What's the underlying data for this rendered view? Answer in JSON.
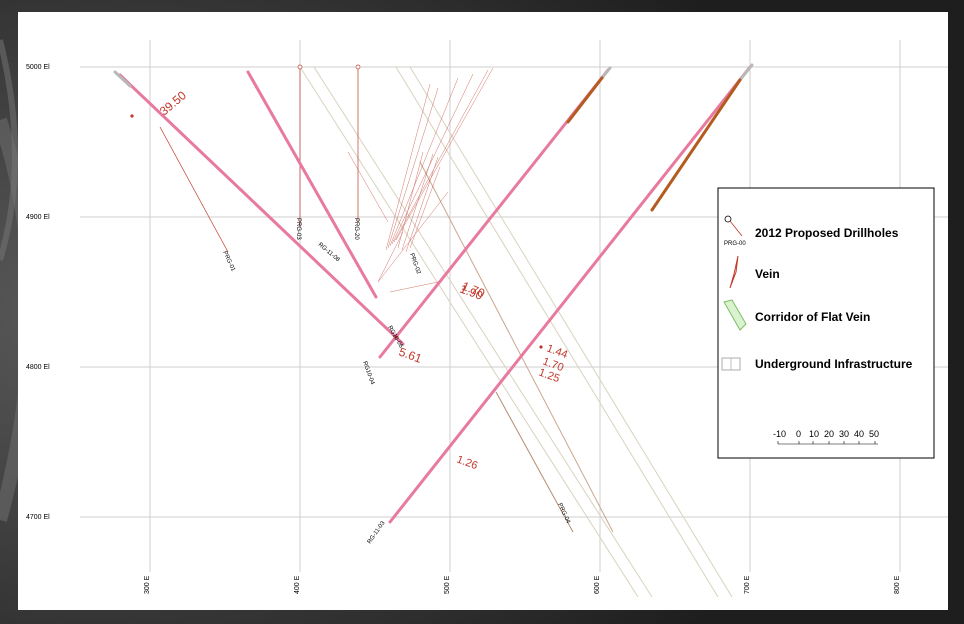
{
  "elevations": [
    "5000 El",
    "4900 El",
    "4800 El",
    "4700 El"
  ],
  "eastings": [
    "300 E",
    "400 E",
    "500 E",
    "600 E",
    "700 E",
    "800 E"
  ],
  "holes": [
    {
      "id": "RG-11-08",
      "label": "RG-11-08"
    },
    {
      "id": "RG10-04",
      "label": "RG10-04"
    },
    {
      "id": "RG-11-03",
      "label": "RG-11-03"
    },
    {
      "id": "RG10-06",
      "label": "RG10-06"
    },
    {
      "id": "PRG-01",
      "label": "PRG-01"
    },
    {
      "id": "PRG-03",
      "label": "PRG-03"
    },
    {
      "id": "PRG-20",
      "label": "PRG-20"
    },
    {
      "id": "PRG-02",
      "label": "PRG-02"
    },
    {
      "id": "PRG-04",
      "label": "PRG-04"
    }
  ],
  "assays": [
    "39.50",
    "1.90",
    "1.70",
    "5.61",
    "1.44",
    "1.70",
    "1.25",
    "1.26"
  ],
  "legend": {
    "items": [
      {
        "label": "2012 Proposed Drillholes",
        "sublabel": "PRG-00",
        "icon": "drillhole-icon"
      },
      {
        "label": "Vein",
        "icon": "vein-icon"
      },
      {
        "label": "Corridor of Flat Vein",
        "icon": "corridor-icon"
      },
      {
        "label": "Underground Infrastructure",
        "icon": "infrastructure-icon"
      }
    ],
    "scale": [
      "-10",
      "0",
      "10",
      "20",
      "30",
      "40",
      "50"
    ]
  },
  "colors": {
    "drillhole": "#e8799f",
    "mineralized": "#b35c1f",
    "assay": "#c0392b",
    "proposed": "#c0392b",
    "infra": "#d8d2bf",
    "grid": "#cfcfcf",
    "vein": "#c0392b"
  }
}
